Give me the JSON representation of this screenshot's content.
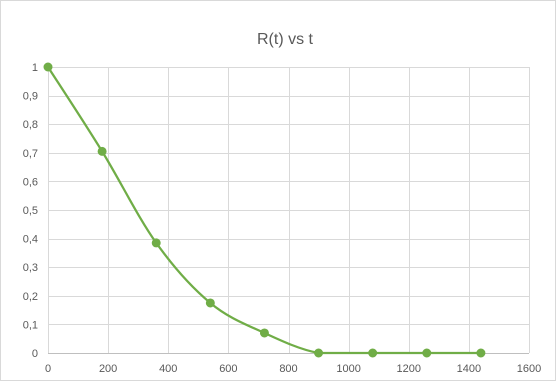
{
  "chart_data": {
    "type": "scatter",
    "title": "R(t) vs t",
    "xlabel": "",
    "ylabel": "",
    "xlim": [
      0,
      1600
    ],
    "ylim": [
      0,
      1
    ],
    "x_ticks": [
      0,
      200,
      400,
      600,
      800,
      1000,
      1200,
      1400,
      1600
    ],
    "x_tick_labels": [
      "0",
      "200",
      "400",
      "600",
      "800",
      "1000",
      "1200",
      "1400",
      "1600"
    ],
    "y_ticks": [
      0,
      0.1,
      0.2,
      0.3,
      0.4,
      0.5,
      0.6,
      0.7,
      0.8,
      0.9,
      1
    ],
    "y_tick_labels": [
      "0",
      "0,1",
      "0,2",
      "0,3",
      "0,4",
      "0,5",
      "0,6",
      "0,7",
      "0,8",
      "0,9",
      "1"
    ],
    "grid": true,
    "smooth_line": true,
    "series": [
      {
        "color": "#70ad47",
        "x": [
          0,
          180,
          360,
          540,
          720,
          900,
          1080,
          1260,
          1440
        ],
        "y": [
          1,
          0.705,
          0.385,
          0.175,
          0.07,
          0,
          0,
          0,
          0
        ]
      }
    ]
  }
}
